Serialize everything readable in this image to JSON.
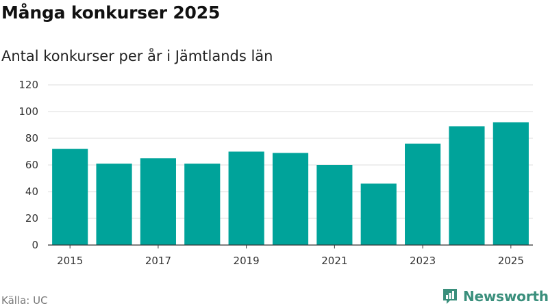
{
  "header": {
    "title": "Många konkurser 2025",
    "subtitle": "Antal konkurser per år i Jämtlands län"
  },
  "footer": {
    "source": "Källa: UC",
    "brand": "Newsworthy"
  },
  "colors": {
    "bar": "#00a39a",
    "brand": "#3a8f7c"
  },
  "icons": {
    "brand_logo": "newsworthy-logo-icon"
  },
  "chart_data": {
    "type": "bar",
    "categories": [
      "2015",
      "2016",
      "2017",
      "2018",
      "2019",
      "2020",
      "2021",
      "2022",
      "2023",
      "2024",
      "2025"
    ],
    "values": [
      72,
      61,
      65,
      61,
      70,
      69,
      60,
      46,
      76,
      89,
      92
    ],
    "x_tick_labels": [
      "2015",
      "2017",
      "2019",
      "2021",
      "2023",
      "2025"
    ],
    "y_ticks": [
      0,
      20,
      40,
      60,
      80,
      100,
      120
    ],
    "ylim": [
      0,
      120
    ],
    "xlabel": "",
    "ylabel": "",
    "grid": true,
    "legend": false
  }
}
